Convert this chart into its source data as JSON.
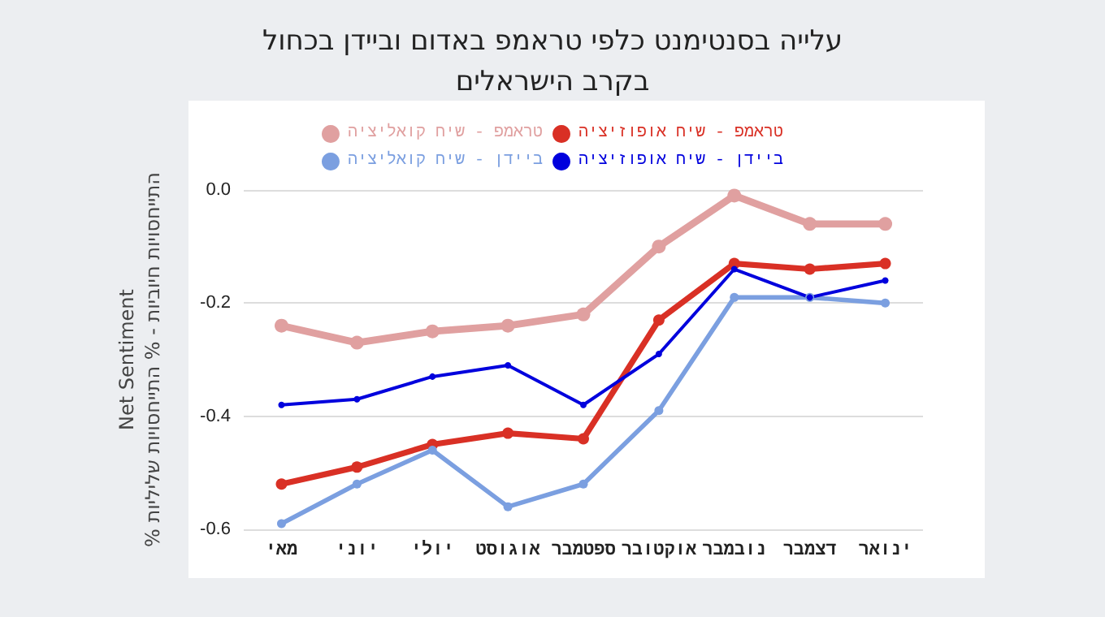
{
  "chart_data": {
    "type": "line",
    "title": "עלייה בסנטימנט כלפי טראמפ באדום וביידן בכחול\nבקרב הישראלים",
    "ylabel": "Net Sentiment\n% התייחסויות חיוביות - % התייחסויות שליליות",
    "categories": [
      "מאי",
      "יוני",
      "יולי",
      "אוגוסט",
      "ספטמבר",
      "אוקטובר",
      "נובמבר",
      "דצמבר",
      "ינואר"
    ],
    "series": [
      {
        "name": "טראמפ - שיח קואליציה",
        "color": "#e0a0a0",
        "values": [
          -0.24,
          -0.27,
          -0.25,
          -0.24,
          -0.22,
          -0.1,
          -0.01,
          -0.06,
          -0.06
        ]
      },
      {
        "name": "טראמפ - שיח אופוזיציה",
        "color": "#d93025",
        "values": [
          -0.52,
          -0.49,
          -0.45,
          -0.43,
          -0.44,
          -0.23,
          -0.13,
          -0.14,
          -0.13
        ]
      },
      {
        "name": "ביידן - שיח קואליציה",
        "color": "#7b9fe0",
        "values": [
          -0.59,
          -0.52,
          -0.46,
          -0.56,
          -0.52,
          -0.39,
          -0.19,
          -0.19,
          -0.2
        ]
      },
      {
        "name": "ביידן - שיח אופוזיציה",
        "color": "#0000dd",
        "values": [
          -0.38,
          -0.37,
          -0.33,
          -0.31,
          -0.38,
          -0.29,
          -0.14,
          -0.19,
          -0.16
        ]
      }
    ],
    "ylim": [
      -0.6,
      0
    ],
    "yticks": [
      {
        "value": -0.6,
        "label": "-0.6"
      },
      {
        "value": -0.4,
        "label": "-0.4"
      },
      {
        "value": -0.2,
        "label": "-0.2"
      },
      {
        "value": 0,
        "label": "0.0"
      }
    ],
    "grid": "y",
    "legend": "top",
    "marker": "circle",
    "line_style": "solid"
  }
}
